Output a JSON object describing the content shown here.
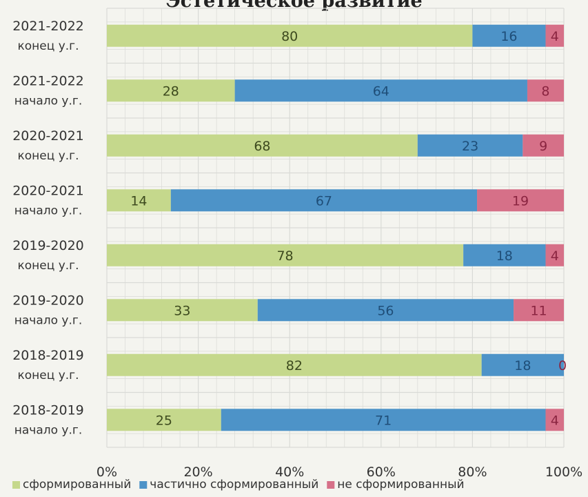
{
  "chart_data": {
    "type": "bar",
    "orientation": "horizontal",
    "stacked": true,
    "normalized_percent": true,
    "title": "Эстетическое развитие",
    "categories": [
      [
        "2021-2022",
        "конец у.г."
      ],
      [
        "2021-2022",
        "начало у.г."
      ],
      [
        "2020-2021",
        "конец у.г."
      ],
      [
        "2020-2021",
        "начало у.г."
      ],
      [
        "2019-2020",
        "конец у.г."
      ],
      [
        "2019-2020",
        "начало у.г."
      ],
      [
        "2018-2019",
        "конец у.г."
      ],
      [
        "2018-2019",
        "начало у.г."
      ]
    ],
    "series": [
      {
        "name": "сформированный",
        "color": "#c5d88c",
        "values": [
          80,
          28,
          68,
          14,
          78,
          33,
          82,
          25
        ]
      },
      {
        "name": "частично сформированный",
        "color": "#4d93c8",
        "values": [
          16,
          64,
          23,
          67,
          18,
          56,
          18,
          71
        ]
      },
      {
        "name": "не сформированный",
        "color": "#d67088",
        "values": [
          4,
          8,
          9,
          19,
          4,
          11,
          0,
          4
        ]
      }
    ],
    "x_ticks": [
      "0%",
      "20%",
      "40%",
      "60%",
      "80%",
      "100%"
    ],
    "xlim": [
      0,
      100
    ],
    "grid": true,
    "legend_position": "bottom"
  },
  "colors": {
    "background": "#f4f4ef",
    "grid": "#d9dad6",
    "text": "#333333",
    "label_on_green": "#3d4a1e",
    "label_on_blue": "#1f4e78",
    "label_on_pink": "#8a2440"
  }
}
